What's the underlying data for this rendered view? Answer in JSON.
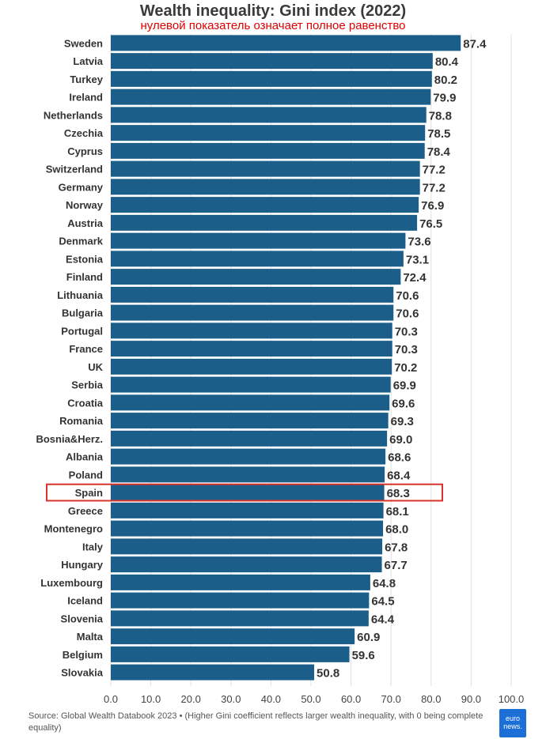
{
  "chart_data": {
    "type": "bar",
    "orientation": "horizontal",
    "title": "Wealth inequality: Gini index (2022)",
    "subtitle": "нулевой показатель означает полное равенство",
    "categories": [
      "Sweden",
      "Latvia",
      "Turkey",
      "Ireland",
      "Netherlands",
      "Czechia",
      "Cyprus",
      "Switzerland",
      "Germany",
      "Norway",
      "Austria",
      "Denmark",
      "Estonia",
      "Finland",
      "Lithuania",
      "Bulgaria",
      "Portugal",
      "France",
      "UK",
      "Serbia",
      "Croatia",
      "Romania",
      "Bosnia&Herz.",
      "Albania",
      "Poland",
      "Spain",
      "Greece",
      "Montenegro",
      "Italy",
      "Hungary",
      "Luxembourg",
      "Iceland",
      "Slovenia",
      "Malta",
      "Belgium",
      "Slovakia"
    ],
    "values": [
      87.4,
      80.4,
      80.2,
      79.9,
      78.8,
      78.5,
      78.4,
      77.2,
      77.2,
      76.9,
      76.5,
      73.6,
      73.1,
      72.4,
      70.6,
      70.6,
      70.3,
      70.3,
      70.2,
      69.9,
      69.6,
      69.3,
      69.0,
      68.6,
      68.4,
      68.3,
      68.1,
      68.0,
      67.8,
      67.7,
      64.8,
      64.5,
      64.4,
      60.9,
      59.6,
      50.8
    ],
    "value_labels": [
      "87.4",
      "80.4",
      "80.2",
      "79.9",
      "78.8",
      "78.5",
      "78.4",
      "77.2",
      "77.2",
      "76.9",
      "76.5",
      "73.6",
      "73.1",
      "72.4",
      "70.6",
      "70.6",
      "70.3",
      "70.3",
      "70.2",
      "69.9",
      "69.6",
      "69.3",
      "69.0",
      "68.6",
      "68.4",
      "68.3",
      "68.1",
      "68.0",
      "67.8",
      "67.7",
      "64.8",
      "64.5",
      "64.4",
      "60.9",
      "59.6",
      "50.8"
    ],
    "xlim": [
      0,
      100
    ],
    "xticks": [
      "0.0",
      "10.0",
      "20.0",
      "30.0",
      "40.0",
      "50.0",
      "60.0",
      "70.0",
      "80.0",
      "90.0",
      "100.0"
    ],
    "grid": true,
    "highlight": "Spain",
    "colors": {
      "bar": "#1b5e8a",
      "highlight_box": "#d9342b",
      "grid": "#e2e2e2",
      "label": "#333333"
    }
  },
  "footer": {
    "source": "Source: Global Wealth Databook 2023 • (Higher Gini coefficient reflects larger wealth inequality, with 0 being complete equality)",
    "logo_text": "euro news."
  }
}
